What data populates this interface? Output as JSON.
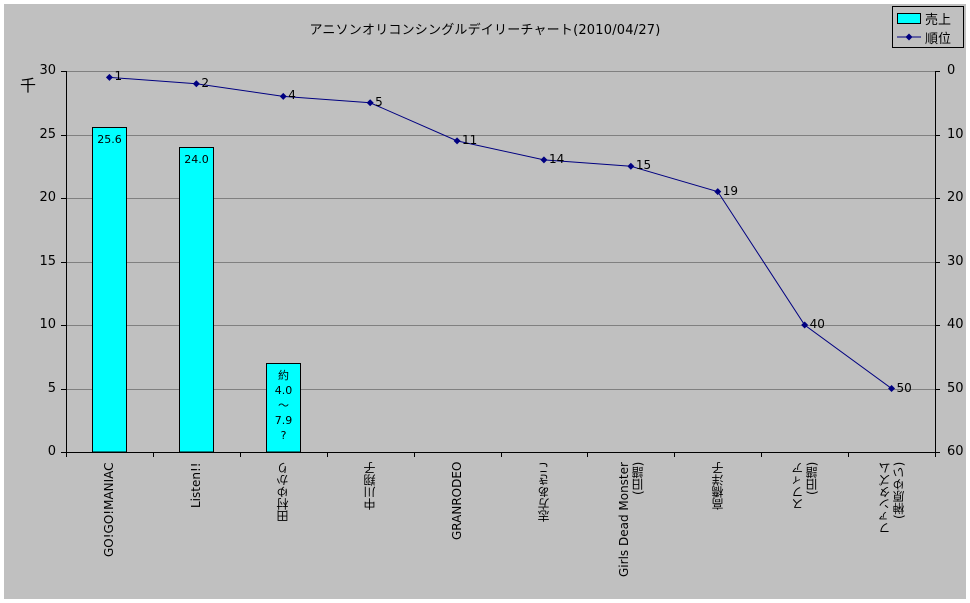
{
  "chart_data": {
    "type": "bar+line",
    "title": "アニソンオリコンシングルデイリーチャート(2010/04/27)",
    "categories": [
      "GO!GO!MANIAC",
      "Listen!!",
      "田村ゆかり",
      "中川翔子",
      "GRANRODEO",
      "志方あきこ",
      "Girls Dead Monster\n(旧譜)",
      "高橋洋子",
      "スフィア\n(旧譜)",
      "ファンタズム\n(榊原ゆい)"
    ],
    "series": [
      {
        "name": "売上",
        "type": "bar",
        "axis": "left",
        "color": "#00ffff",
        "values": [
          25.6,
          24.0,
          7.0,
          null,
          null,
          null,
          null,
          null,
          null,
          null
        ],
        "labels": [
          "25.6",
          "24.0",
          "約\n4.0\n～\n7.9\n?",
          "",
          "",
          "",
          "",
          "",
          "",
          ""
        ]
      },
      {
        "name": "順位",
        "type": "line",
        "axis": "right",
        "color": "#000080",
        "values": [
          1,
          2,
          4,
          5,
          11,
          14,
          15,
          19,
          40,
          50
        ],
        "labels": [
          "1",
          "2",
          "4",
          "5",
          "11",
          "14",
          "15",
          "19",
          "40",
          "50"
        ]
      }
    ],
    "left_axis": {
      "label": "千",
      "ylim": [
        0,
        30
      ],
      "ticks": [
        "0",
        "5",
        "10",
        "15",
        "20",
        "25",
        "30"
      ]
    },
    "right_axis": {
      "ylim": [
        60,
        0
      ],
      "inverted": true,
      "ticks": [
        "0",
        "10",
        "20",
        "30",
        "40",
        "50",
        "60"
      ]
    },
    "grid": true,
    "legend_position": "top-right",
    "xlabel": "",
    "ylabel": "千"
  },
  "legend": {
    "bar_label": "売上",
    "line_label": "順位"
  },
  "unit_label": "千"
}
